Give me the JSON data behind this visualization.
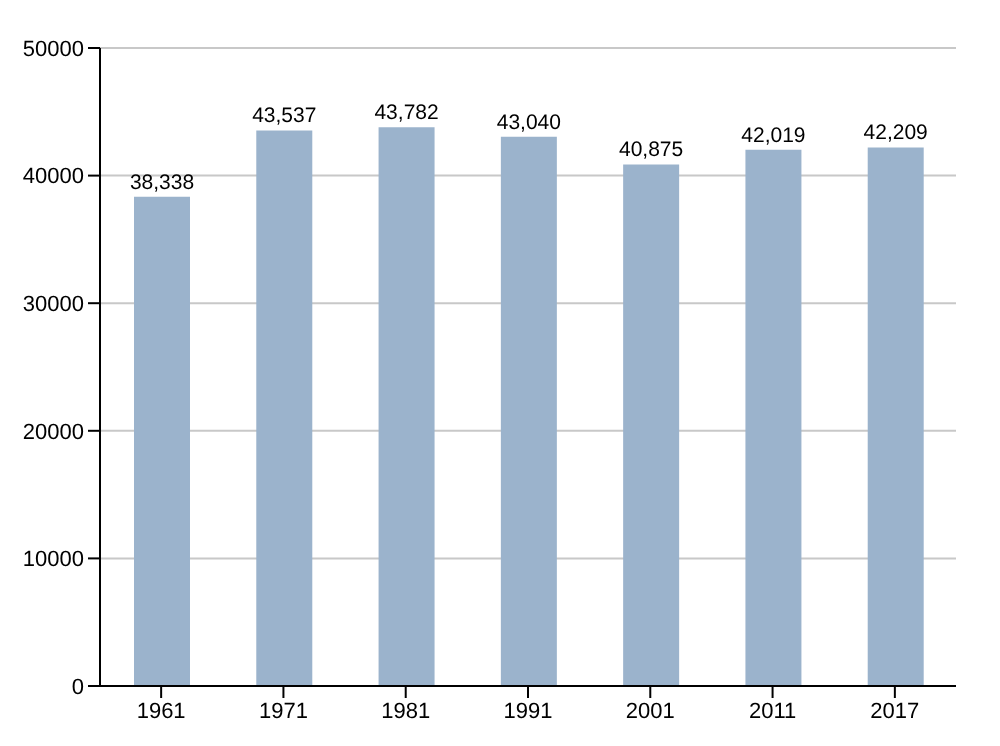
{
  "chart_data": {
    "type": "bar",
    "categories": [
      "1961",
      "1971",
      "1981",
      "1991",
      "2001",
      "2011",
      "2017"
    ],
    "values": [
      38338,
      43537,
      43782,
      43040,
      40875,
      42019,
      42209
    ],
    "value_labels": [
      "38,338",
      "43,537",
      "43,782",
      "43,040",
      "40,875",
      "42,019",
      "42,209"
    ],
    "color": "#9bb3cc",
    "ylim": [
      0,
      50000
    ],
    "yticks": [
      0,
      10000,
      20000,
      30000,
      40000,
      50000
    ],
    "grid": "y"
  }
}
